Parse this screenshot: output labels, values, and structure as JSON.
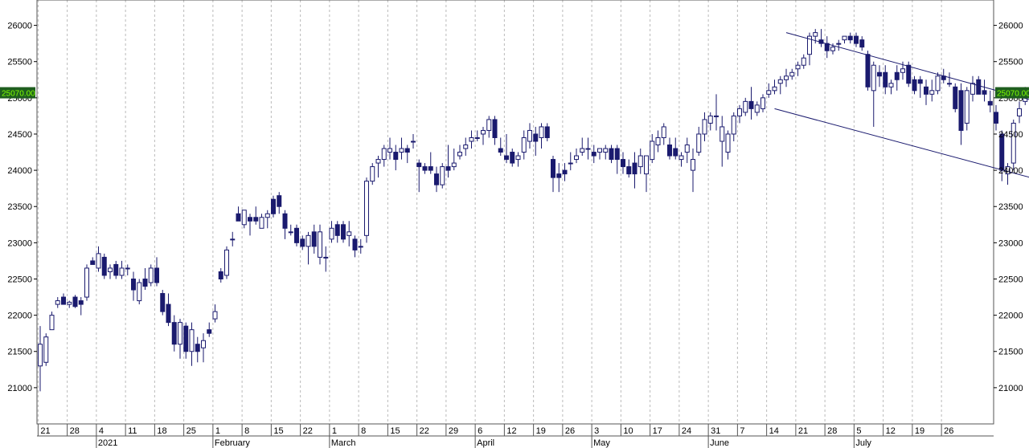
{
  "chart_data": {
    "type": "candlestick",
    "title": "",
    "xlabel": "",
    "ylabel": "",
    "ylim": [
      20500,
      26350
    ],
    "y_ticks": [
      21000,
      21500,
      22000,
      22500,
      23000,
      23500,
      24000,
      24500,
      25000,
      25500,
      26000
    ],
    "last_price_label": "25070.00",
    "colors": {
      "bull_fill": "#ffffff",
      "bear_fill": "#1a1a6e",
      "wick": "#1a1a6e",
      "trendline": "#1a1a6e",
      "grid": "#bbbbbb",
      "price_flag": "#1e5e1e",
      "price_flag_text": "#7fff00"
    },
    "grid": "vertical dashed at weekly ticks",
    "x_day_labels": [
      "21",
      "28",
      "4",
      "11",
      "18",
      "25",
      "1",
      "8",
      "15",
      "22",
      "1",
      "8",
      "15",
      "22",
      "29",
      "6",
      "12",
      "19",
      "26",
      "3",
      "10",
      "17",
      "24",
      "31",
      "7",
      "14",
      "21",
      "28",
      "5",
      "12",
      "19",
      "26"
    ],
    "x_month_labels": [
      {
        "label": "2021",
        "at_day_label_index": 2
      },
      {
        "label": "February",
        "at_day_label_index": 6
      },
      {
        "label": "March",
        "at_day_label_index": 10
      },
      {
        "label": "April",
        "at_day_label_index": 15
      },
      {
        "label": "May",
        "at_day_label_index": 19
      },
      {
        "label": "June",
        "at_day_label_index": 23
      },
      {
        "label": "July",
        "at_day_label_index": 28
      }
    ],
    "candles": [
      [
        21300,
        21850,
        20950,
        21600
      ],
      [
        21350,
        21750,
        21300,
        21700
      ],
      [
        21800,
        22050,
        21800,
        22000
      ],
      [
        22150,
        22250,
        22100,
        22200
      ],
      [
        22250,
        22300,
        22150,
        22150
      ],
      [
        22150,
        22200,
        22100,
        22180
      ],
      [
        22250,
        22280,
        22100,
        22120
      ],
      [
        22200,
        22250,
        22000,
        22150
      ],
      [
        22250,
        22700,
        22200,
        22650
      ],
      [
        22750,
        22800,
        22700,
        22700
      ],
      [
        22650,
        22950,
        22600,
        22850
      ],
      [
        22800,
        22850,
        22500,
        22550
      ],
      [
        22600,
        22700,
        22500,
        22650
      ],
      [
        22700,
        22750,
        22500,
        22550
      ],
      [
        22550,
        22750,
        22500,
        22650
      ],
      [
        22650,
        22700,
        22550,
        22650
      ],
      [
        22500,
        22600,
        22200,
        22350
      ],
      [
        22200,
        22500,
        22150,
        22450
      ],
      [
        22500,
        22650,
        22350,
        22400
      ],
      [
        22450,
        22700,
        22400,
        22650
      ],
      [
        22650,
        22800,
        22400,
        22450
      ],
      [
        22300,
        22350,
        22000,
        22050
      ],
      [
        22150,
        22300,
        21850,
        21900
      ],
      [
        21900,
        22000,
        21500,
        21600
      ],
      [
        21600,
        21950,
        21400,
        21900
      ],
      [
        21850,
        21900,
        21400,
        21500
      ],
      [
        21500,
        21900,
        21300,
        21800
      ],
      [
        21600,
        21700,
        21350,
        21500
      ],
      [
        21550,
        21750,
        21350,
        21650
      ],
      [
        21800,
        21900,
        21700,
        21750
      ],
      [
        21950,
        22150,
        21900,
        22050
      ],
      [
        22600,
        22650,
        22450,
        22500
      ],
      [
        22550,
        22950,
        22500,
        22900
      ],
      [
        23050,
        23150,
        22950,
        23050
      ],
      [
        23400,
        23500,
        23300,
        23300
      ],
      [
        23250,
        23450,
        23200,
        23450
      ],
      [
        23350,
        23400,
        23100,
        23300
      ],
      [
        23350,
        23500,
        23250,
        23300
      ],
      [
        23200,
        23400,
        23250,
        23350
      ],
      [
        23350,
        23450,
        23200,
        23400
      ],
      [
        23600,
        23650,
        23350,
        23400
      ],
      [
        23650,
        23700,
        23400,
        23500
      ],
      [
        23400,
        23450,
        23050,
        23200
      ],
      [
        23150,
        23250,
        23100,
        23150
      ],
      [
        23200,
        23250,
        22950,
        23000
      ],
      [
        23050,
        23100,
        22900,
        22950
      ],
      [
        22950,
        23150,
        22700,
        23100
      ],
      [
        23150,
        23250,
        22850,
        22950
      ],
      [
        22800,
        23250,
        22700,
        23150
      ],
      [
        22800,
        22950,
        22600,
        22800
      ],
      [
        23050,
        23300,
        23000,
        23200
      ],
      [
        23250,
        23300,
        23000,
        23100
      ],
      [
        23250,
        23300,
        23000,
        23050
      ],
      [
        23100,
        23300,
        22950,
        23150
      ],
      [
        23050,
        23100,
        22800,
        22900
      ],
      [
        22950,
        23050,
        22850,
        22950
      ],
      [
        23100,
        23900,
        23000,
        23850
      ],
      [
        23850,
        24100,
        23800,
        24050
      ],
      [
        24100,
        24200,
        23900,
        24150
      ],
      [
        24150,
        24350,
        24050,
        24300
      ],
      [
        24250,
        24450,
        24150,
        24300
      ],
      [
        24250,
        24350,
        24000,
        24150
      ],
      [
        24250,
        24450,
        24150,
        24300
      ],
      [
        24300,
        24350,
        24100,
        24250
      ],
      [
        24400,
        24500,
        24300,
        24400
      ],
      [
        24100,
        24150,
        23700,
        24050
      ],
      [
        24050,
        24100,
        23950,
        24000
      ],
      [
        24050,
        24250,
        23950,
        24000
      ],
      [
        23950,
        24050,
        23700,
        23800
      ],
      [
        23800,
        24100,
        23750,
        24050
      ],
      [
        24050,
        24350,
        23900,
        24000
      ],
      [
        24050,
        24300,
        24000,
        24100
      ],
      [
        24200,
        24350,
        24150,
        24250
      ],
      [
        24300,
        24450,
        24200,
        24350
      ],
      [
        24400,
        24550,
        24300,
        24450
      ],
      [
        24450,
        24550,
        24400,
        24450
      ],
      [
        24500,
        24600,
        24350,
        24550
      ],
      [
        24550,
        24750,
        24450,
        24700
      ],
      [
        24700,
        24750,
        24350,
        24450
      ],
      [
        24300,
        24450,
        24200,
        24250
      ],
      [
        24200,
        24500,
        24100,
        24150
      ],
      [
        24250,
        24300,
        24050,
        24100
      ],
      [
        24150,
        24250,
        24050,
        24200
      ],
      [
        24250,
        24550,
        24150,
        24450
      ],
      [
        24400,
        24650,
        24300,
        24550
      ],
      [
        24500,
        24600,
        24200,
        24400
      ],
      [
        24450,
        24650,
        24300,
        24600
      ],
      [
        24600,
        24650,
        24400,
        24450
      ],
      [
        24150,
        24200,
        23700,
        23900
      ],
      [
        23950,
        24100,
        23700,
        23900
      ],
      [
        24000,
        24100,
        23850,
        23950
      ],
      [
        24100,
        24250,
        24000,
        24100
      ],
      [
        24150,
        24300,
        24100,
        24200
      ],
      [
        24250,
        24450,
        24200,
        24300
      ],
      [
        24300,
        24450,
        24150,
        24300
      ],
      [
        24250,
        24350,
        24100,
        24200
      ],
      [
        24250,
        24300,
        24150,
        24300
      ],
      [
        24250,
        24350,
        24150,
        24300
      ],
      [
        24300,
        24350,
        24100,
        24150
      ],
      [
        24300,
        24350,
        23950,
        24150
      ],
      [
        24150,
        24250,
        23950,
        24050
      ],
      [
        24050,
        24150,
        23900,
        23950
      ],
      [
        24100,
        24250,
        23750,
        23950
      ],
      [
        24050,
        24300,
        23950,
        24200
      ],
      [
        23950,
        24200,
        23700,
        24200
      ],
      [
        24150,
        24500,
        24100,
        24400
      ],
      [
        24350,
        24550,
        24250,
        24450
      ],
      [
        24450,
        24650,
        24350,
        24600
      ],
      [
        24350,
        24450,
        24150,
        24200
      ],
      [
        24300,
        24450,
        24150,
        24200
      ],
      [
        24150,
        24250,
        24050,
        24200
      ],
      [
        24250,
        24450,
        24100,
        24350
      ],
      [
        24000,
        24300,
        23700,
        24150
      ],
      [
        24250,
        24600,
        24200,
        24500
      ],
      [
        24500,
        24800,
        24400,
        24700
      ],
      [
        24650,
        24800,
        24550,
        24750
      ],
      [
        24750,
        25050,
        24550,
        24750
      ],
      [
        24400,
        24750,
        24050,
        24600
      ],
      [
        24250,
        24550,
        24150,
        24500
      ],
      [
        24500,
        24800,
        24400,
        24750
      ],
      [
        24750,
        24900,
        24650,
        24850
      ],
      [
        24800,
        25000,
        24750,
        24950
      ],
      [
        24950,
        25150,
        24700,
        24850
      ],
      [
        24800,
        24950,
        24750,
        24900
      ],
      [
        24850,
        25050,
        24800,
        25000
      ],
      [
        25050,
        25200,
        25000,
        25100
      ],
      [
        25100,
        25250,
        25050,
        25150
      ],
      [
        25200,
        25300,
        25050,
        25250
      ],
      [
        25250,
        25400,
        25150,
        25300
      ],
      [
        25300,
        25400,
        25250,
        25350
      ],
      [
        25400,
        25500,
        25300,
        25450
      ],
      [
        25450,
        25600,
        25400,
        25550
      ],
      [
        25600,
        25900,
        25450,
        25850
      ],
      [
        25850,
        25950,
        25750,
        25900
      ],
      [
        25800,
        25950,
        25700,
        25750
      ],
      [
        25750,
        25850,
        25550,
        25650
      ],
      [
        25650,
        25750,
        25600,
        25700
      ],
      [
        25750,
        25800,
        25650,
        25750
      ],
      [
        25800,
        25850,
        25750,
        25850
      ],
      [
        25850,
        25900,
        25750,
        25800
      ],
      [
        25850,
        25900,
        25700,
        25750
      ],
      [
        25800,
        25850,
        25650,
        25700
      ],
      [
        25600,
        25650,
        25100,
        25150
      ],
      [
        25100,
        25500,
        24600,
        25450
      ],
      [
        25350,
        25450,
        25150,
        25300
      ],
      [
        25350,
        25450,
        25050,
        25150
      ],
      [
        25150,
        25250,
        25050,
        25200
      ],
      [
        25350,
        25450,
        25100,
        25250
      ],
      [
        25350,
        25500,
        25250,
        25400
      ],
      [
        25450,
        25500,
        25150,
        25200
      ],
      [
        25250,
        25300,
        25050,
        25100
      ],
      [
        25250,
        25300,
        25000,
        25200
      ],
      [
        25150,
        25250,
        24900,
        25050
      ],
      [
        25050,
        25250,
        24950,
        25100
      ],
      [
        25100,
        25350,
        25050,
        25300
      ],
      [
        25300,
        25400,
        25200,
        25250
      ],
      [
        25200,
        25350,
        25150,
        25200
      ],
      [
        25150,
        25200,
        24800,
        24850
      ],
      [
        25100,
        25200,
        24350,
        24550
      ],
      [
        24650,
        25150,
        24550,
        25100
      ],
      [
        25050,
        25300,
        24950,
        25200
      ],
      [
        25250,
        25300,
        25050,
        25050
      ],
      [
        25100,
        25250,
        24950,
        25050
      ],
      [
        24950,
        25100,
        24800,
        24900
      ],
      [
        24800,
        24900,
        24550,
        24650
      ],
      [
        24500,
        24550,
        23850,
        24000
      ],
      [
        23950,
        24100,
        23800,
        24050
      ],
      [
        24100,
        24700,
        24000,
        24650
      ],
      [
        24750,
        24950,
        24650,
        24850
      ],
      [
        24950,
        25150,
        24900,
        25070
      ]
    ]
  }
}
